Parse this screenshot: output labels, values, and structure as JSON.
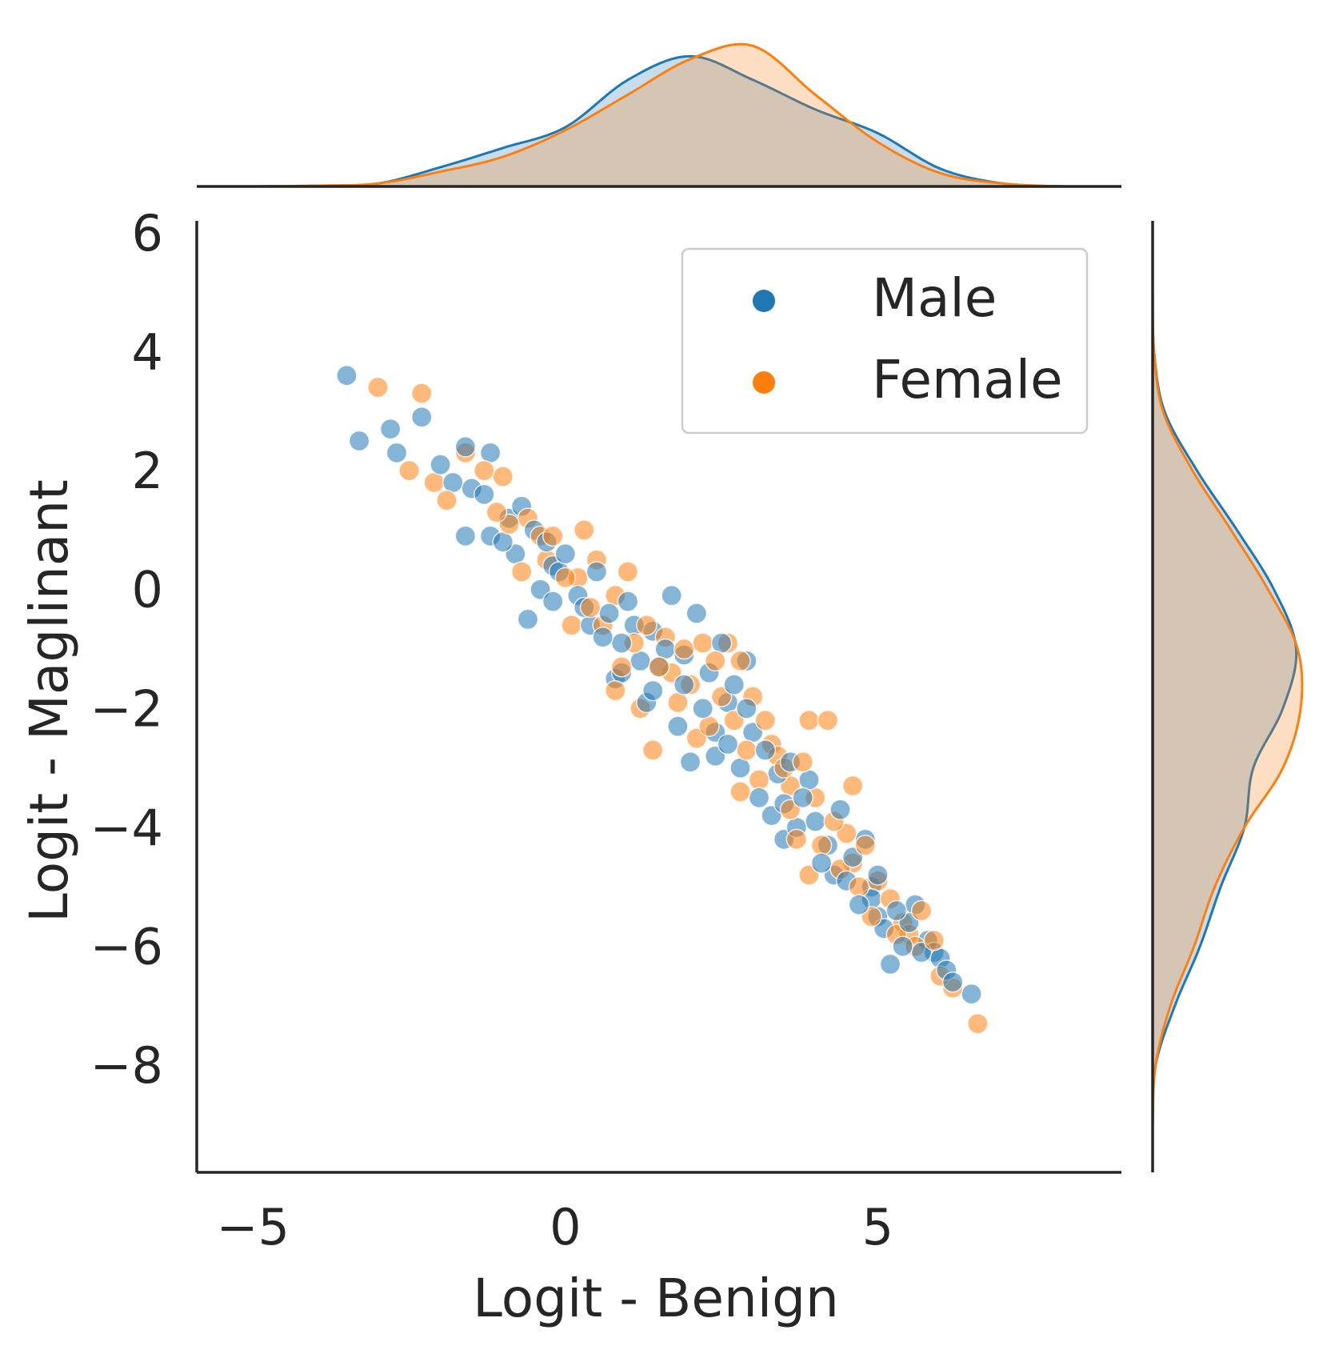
{
  "colors": {
    "male": "#1f77b4",
    "female": "#ff7f0e",
    "axis": "#262626",
    "overlap": "#c4c3bd"
  },
  "chart_data": {
    "type": "scatter",
    "subtype": "jointplot-with-marginal-kde",
    "xlabel": "Logit - Benign",
    "ylabel": "Logit - Maglinant",
    "xlim": [
      -5.9,
      8.9
    ],
    "ylim": [
      -9.8,
      6.2
    ],
    "xticks": [
      "−5",
      "0",
      "5"
    ],
    "yticks": [
      "6",
      "4",
      "2",
      "0",
      "−2",
      "−4",
      "−6",
      "−8"
    ],
    "xtick_values": [
      -5,
      0,
      5
    ],
    "ytick_values": [
      6,
      4,
      2,
      0,
      -2,
      -4,
      -6,
      -8
    ],
    "grid": false,
    "legend_position": "top-right",
    "series": [
      {
        "name": "Male",
        "color": "#1f77b4",
        "points": [
          [
            -3.5,
            3.6
          ],
          [
            -3.3,
            2.5
          ],
          [
            -2.8,
            2.7
          ],
          [
            -2.3,
            2.9
          ],
          [
            -2.7,
            2.3
          ],
          [
            -2.0,
            2.1
          ],
          [
            -1.6,
            2.4
          ],
          [
            -1.2,
            2.3
          ],
          [
            -1.8,
            1.8
          ],
          [
            -1.5,
            1.7
          ],
          [
            -1.3,
            1.6
          ],
          [
            -1.6,
            0.9
          ],
          [
            -1.2,
            0.9
          ],
          [
            -0.9,
            1.2
          ],
          [
            -0.7,
            1.4
          ],
          [
            -0.5,
            1.0
          ],
          [
            -0.2,
            0.4
          ],
          [
            0.0,
            0.6
          ],
          [
            -1.0,
            0.8
          ],
          [
            -0.8,
            0.6
          ],
          [
            -0.4,
            0.0
          ],
          [
            -0.6,
            -0.5
          ],
          [
            -0.2,
            -0.2
          ],
          [
            0.2,
            -0.1
          ],
          [
            0.5,
            0.3
          ],
          [
            0.4,
            -0.6
          ],
          [
            0.7,
            -0.4
          ],
          [
            0.9,
            -0.9
          ],
          [
            1.0,
            -0.2
          ],
          [
            1.2,
            -1.2
          ],
          [
            0.9,
            -1.4
          ],
          [
            1.4,
            -0.7
          ],
          [
            1.6,
            -1.0
          ],
          [
            1.7,
            -0.1
          ],
          [
            1.4,
            -1.7
          ],
          [
            0.8,
            -1.5
          ],
          [
            1.9,
            -1.1
          ],
          [
            2.1,
            -0.4
          ],
          [
            2.3,
            -1.4
          ],
          [
            2.5,
            -0.9
          ],
          [
            2.2,
            -2.0
          ],
          [
            1.8,
            -2.3
          ],
          [
            2.4,
            -2.4
          ],
          [
            2.7,
            -1.6
          ],
          [
            2.9,
            -1.2
          ],
          [
            2.6,
            -2.6
          ],
          [
            3.0,
            -2.4
          ],
          [
            3.2,
            -2.7
          ],
          [
            2.8,
            -3.0
          ],
          [
            3.4,
            -3.1
          ],
          [
            3.1,
            -3.5
          ],
          [
            3.6,
            -2.9
          ],
          [
            3.3,
            -3.8
          ],
          [
            3.8,
            -3.5
          ],
          [
            4.0,
            -3.9
          ],
          [
            3.5,
            -4.2
          ],
          [
            4.2,
            -4.3
          ],
          [
            4.4,
            -3.7
          ],
          [
            4.1,
            -4.6
          ],
          [
            4.6,
            -4.5
          ],
          [
            4.8,
            -4.2
          ],
          [
            4.5,
            -4.9
          ],
          [
            5.0,
            -4.8
          ],
          [
            4.9,
            -5.2
          ],
          [
            5.3,
            -5.4
          ],
          [
            5.5,
            -5.6
          ],
          [
            5.1,
            -5.7
          ],
          [
            5.6,
            -5.3
          ],
          [
            5.8,
            -5.9
          ],
          [
            5.4,
            -6.0
          ],
          [
            6.0,
            -6.2
          ],
          [
            5.7,
            -6.1
          ],
          [
            6.1,
            -6.4
          ],
          [
            5.2,
            -6.3
          ],
          [
            6.5,
            -6.8
          ],
          [
            6.2,
            -6.6
          ],
          [
            4.7,
            -5.3
          ],
          [
            2.0,
            -2.9
          ],
          [
            1.3,
            -1.9
          ],
          [
            0.6,
            -0.8
          ],
          [
            -0.1,
            0.3
          ],
          [
            3.7,
            -4.0
          ],
          [
            4.3,
            -4.8
          ],
          [
            2.9,
            -2.0
          ],
          [
            1.5,
            -1.3
          ],
          [
            2.6,
            -1.9
          ],
          [
            3.9,
            -3.2
          ],
          [
            5.0,
            -5.5
          ],
          [
            1.1,
            -0.6
          ],
          [
            0.3,
            -0.3
          ],
          [
            -0.3,
            0.8
          ],
          [
            2.4,
            -2.8
          ],
          [
            3.5,
            -3.6
          ],
          [
            4.9,
            -5.0
          ],
          [
            5.9,
            -6.1
          ],
          [
            1.9,
            -1.6
          ]
        ]
      },
      {
        "name": "Female",
        "color": "#ff7f0e",
        "points": [
          [
            -3.0,
            3.4
          ],
          [
            -2.3,
            3.3
          ],
          [
            -2.5,
            2.0
          ],
          [
            -2.1,
            1.8
          ],
          [
            -1.9,
            1.5
          ],
          [
            -1.6,
            2.3
          ],
          [
            -1.3,
            2.0
          ],
          [
            -1.0,
            1.9
          ],
          [
            -0.9,
            1.1
          ],
          [
            -0.6,
            1.2
          ],
          [
            -0.4,
            0.9
          ],
          [
            -1.1,
            1.3
          ],
          [
            -0.3,
            0.5
          ],
          [
            0.0,
            0.2
          ],
          [
            0.3,
            1.0
          ],
          [
            0.5,
            0.5
          ],
          [
            0.1,
            -0.6
          ],
          [
            0.4,
            -0.3
          ],
          [
            0.8,
            -0.1
          ],
          [
            1.0,
            0.3
          ],
          [
            1.1,
            -0.9
          ],
          [
            0.8,
            -1.7
          ],
          [
            1.3,
            -0.6
          ],
          [
            1.5,
            -1.3
          ],
          [
            1.6,
            -0.8
          ],
          [
            1.2,
            -2.0
          ],
          [
            1.9,
            -1.0
          ],
          [
            2.2,
            -0.9
          ],
          [
            2.0,
            -1.6
          ],
          [
            2.4,
            -1.2
          ],
          [
            2.8,
            -1.2
          ],
          [
            2.5,
            -1.8
          ],
          [
            2.7,
            -2.2
          ],
          [
            3.0,
            -1.8
          ],
          [
            3.2,
            -2.2
          ],
          [
            3.3,
            -2.6
          ],
          [
            2.9,
            -2.7
          ],
          [
            3.5,
            -3.0
          ],
          [
            3.8,
            -2.9
          ],
          [
            3.6,
            -3.3
          ],
          [
            4.0,
            -3.5
          ],
          [
            3.9,
            -2.2
          ],
          [
            4.2,
            -2.2
          ],
          [
            4.3,
            -3.9
          ],
          [
            3.7,
            -4.2
          ],
          [
            4.5,
            -4.1
          ],
          [
            4.8,
            -4.3
          ],
          [
            4.4,
            -4.7
          ],
          [
            3.9,
            -4.8
          ],
          [
            4.7,
            -5.0
          ],
          [
            5.0,
            -4.9
          ],
          [
            5.2,
            -5.2
          ],
          [
            4.9,
            -5.5
          ],
          [
            5.4,
            -5.6
          ],
          [
            5.7,
            -5.4
          ],
          [
            5.3,
            -5.8
          ],
          [
            5.9,
            -5.9
          ],
          [
            5.6,
            -6.0
          ],
          [
            6.0,
            -6.5
          ],
          [
            6.2,
            -6.7
          ],
          [
            6.6,
            -7.3
          ],
          [
            4.6,
            -3.3
          ],
          [
            2.1,
            -2.5
          ],
          [
            1.4,
            -2.7
          ],
          [
            0.9,
            -1.3
          ],
          [
            2.6,
            -0.9
          ],
          [
            3.1,
            -3.2
          ],
          [
            4.1,
            -4.3
          ],
          [
            1.8,
            -1.9
          ],
          [
            0.6,
            -0.6
          ],
          [
            -0.2,
            0.9
          ],
          [
            2.3,
            -2.3
          ],
          [
            3.4,
            -2.8
          ],
          [
            4.6,
            -4.6
          ],
          [
            5.5,
            -5.8
          ],
          [
            1.7,
            -1.4
          ],
          [
            2.8,
            -3.4
          ],
          [
            3.6,
            -3.7
          ],
          [
            -0.7,
            0.3
          ],
          [
            0.2,
            0.2
          ]
        ]
      }
    ],
    "marginals": {
      "x_kde": {
        "Male": [
          [
            -5.0,
            0.0
          ],
          [
            -4.0,
            0.005
          ],
          [
            -3.0,
            0.02
          ],
          [
            -2.0,
            0.13
          ],
          [
            -1.0,
            0.26
          ],
          [
            0.0,
            0.4
          ],
          [
            1.0,
            0.72
          ],
          [
            2.0,
            0.88
          ],
          [
            3.0,
            0.72
          ],
          [
            4.0,
            0.52
          ],
          [
            5.0,
            0.36
          ],
          [
            6.0,
            0.12
          ],
          [
            7.0,
            0.02
          ],
          [
            8.0,
            0.0
          ]
        ],
        "Female": [
          [
            -5.0,
            0.0
          ],
          [
            -4.0,
            0.005
          ],
          [
            -3.0,
            0.02
          ],
          [
            -2.0,
            0.1
          ],
          [
            -1.0,
            0.2
          ],
          [
            0.0,
            0.38
          ],
          [
            1.0,
            0.62
          ],
          [
            2.0,
            0.86
          ],
          [
            3.0,
            0.95
          ],
          [
            4.0,
            0.62
          ],
          [
            5.0,
            0.3
          ],
          [
            6.0,
            0.09
          ],
          [
            7.0,
            0.02
          ],
          [
            8.0,
            0.0
          ]
        ]
      },
      "y_kde": {
        "Male": [
          [
            -9.0,
            0.0
          ],
          [
            -8.0,
            0.02
          ],
          [
            -7.0,
            0.15
          ],
          [
            -6.0,
            0.32
          ],
          [
            -5.0,
            0.46
          ],
          [
            -4.0,
            0.62
          ],
          [
            -3.0,
            0.68
          ],
          [
            -2.0,
            0.88
          ],
          [
            -1.0,
            0.97
          ],
          [
            0.0,
            0.82
          ],
          [
            1.0,
            0.57
          ],
          [
            2.0,
            0.3
          ],
          [
            3.0,
            0.08
          ],
          [
            4.0,
            0.01
          ],
          [
            5.0,
            0.0
          ]
        ],
        "Female": [
          [
            -9.0,
            0.0
          ],
          [
            -8.0,
            0.02
          ],
          [
            -7.0,
            0.12
          ],
          [
            -6.0,
            0.28
          ],
          [
            -5.0,
            0.42
          ],
          [
            -4.0,
            0.62
          ],
          [
            -3.0,
            0.88
          ],
          [
            -2.0,
            1.0
          ],
          [
            -1.0,
            0.98
          ],
          [
            0.0,
            0.78
          ],
          [
            1.0,
            0.53
          ],
          [
            2.0,
            0.27
          ],
          [
            3.0,
            0.07
          ],
          [
            4.0,
            0.01
          ],
          [
            5.0,
            0.0
          ]
        ]
      }
    }
  }
}
